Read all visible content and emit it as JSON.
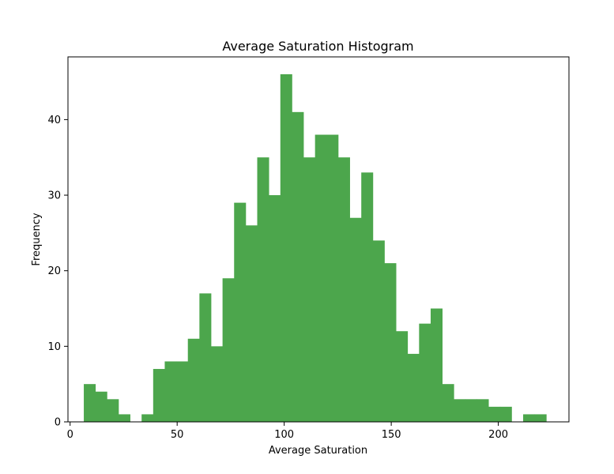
{
  "chart_data": {
    "type": "bar",
    "title": "Average Saturation Histogram",
    "xlabel": "Average Saturation",
    "ylabel": "Frequency",
    "bar_color": "#4ca64c",
    "xlim": [
      -1,
      233
    ],
    "ylim": [
      0,
      48.3
    ],
    "grid": false,
    "legend": "none",
    "xticks": [
      0,
      50,
      100,
      150,
      200
    ],
    "yticks": [
      0,
      10,
      20,
      30,
      40
    ],
    "bins": [
      {
        "x0": 6.4,
        "x1": 11.8,
        "value": 5
      },
      {
        "x0": 11.8,
        "x1": 17.2,
        "value": 4
      },
      {
        "x0": 17.2,
        "x1": 22.6,
        "value": 3
      },
      {
        "x0": 22.6,
        "x1": 28.0,
        "value": 1
      },
      {
        "x0": 28.0,
        "x1": 33.4,
        "value": 0
      },
      {
        "x0": 33.4,
        "x1": 38.8,
        "value": 1
      },
      {
        "x0": 38.8,
        "x1": 44.2,
        "value": 7
      },
      {
        "x0": 44.2,
        "x1": 49.6,
        "value": 8
      },
      {
        "x0": 49.6,
        "x1": 55.0,
        "value": 8
      },
      {
        "x0": 55.0,
        "x1": 60.4,
        "value": 11
      },
      {
        "x0": 60.4,
        "x1": 65.8,
        "value": 17
      },
      {
        "x0": 65.8,
        "x1": 71.2,
        "value": 10
      },
      {
        "x0": 71.2,
        "x1": 76.6,
        "value": 19
      },
      {
        "x0": 76.6,
        "x1": 82.0,
        "value": 29
      },
      {
        "x0": 82.0,
        "x1": 87.4,
        "value": 26
      },
      {
        "x0": 87.4,
        "x1": 92.8,
        "value": 35
      },
      {
        "x0": 92.8,
        "x1": 98.2,
        "value": 30
      },
      {
        "x0": 98.2,
        "x1": 103.6,
        "value": 46
      },
      {
        "x0": 103.6,
        "x1": 109.0,
        "value": 41
      },
      {
        "x0": 109.0,
        "x1": 114.4,
        "value": 35
      },
      {
        "x0": 114.4,
        "x1": 119.8,
        "value": 38
      },
      {
        "x0": 119.8,
        "x1": 125.2,
        "value": 38
      },
      {
        "x0": 125.2,
        "x1": 130.6,
        "value": 35
      },
      {
        "x0": 130.6,
        "x1": 136.0,
        "value": 27
      },
      {
        "x0": 136.0,
        "x1": 141.4,
        "value": 33
      },
      {
        "x0": 141.4,
        "x1": 146.8,
        "value": 24
      },
      {
        "x0": 146.8,
        "x1": 152.2,
        "value": 21
      },
      {
        "x0": 152.2,
        "x1": 157.6,
        "value": 12
      },
      {
        "x0": 157.6,
        "x1": 163.0,
        "value": 9
      },
      {
        "x0": 163.0,
        "x1": 168.4,
        "value": 13
      },
      {
        "x0": 168.4,
        "x1": 173.8,
        "value": 15
      },
      {
        "x0": 173.8,
        "x1": 179.2,
        "value": 5
      },
      {
        "x0": 179.2,
        "x1": 184.6,
        "value": 3
      },
      {
        "x0": 184.6,
        "x1": 190.0,
        "value": 3
      },
      {
        "x0": 190.0,
        "x1": 195.4,
        "value": 3
      },
      {
        "x0": 195.4,
        "x1": 200.8,
        "value": 2
      },
      {
        "x0": 200.8,
        "x1": 206.2,
        "value": 2
      },
      {
        "x0": 206.2,
        "x1": 211.6,
        "value": 0
      },
      {
        "x0": 211.6,
        "x1": 217.0,
        "value": 1
      },
      {
        "x0": 217.0,
        "x1": 222.4,
        "value": 1
      }
    ]
  }
}
